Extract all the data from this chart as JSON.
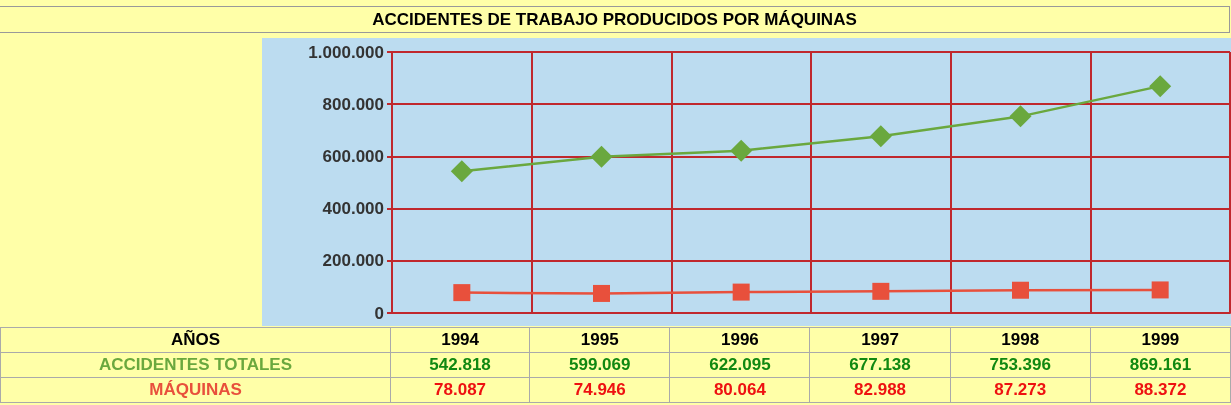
{
  "chart_data": {
    "type": "line",
    "title": "ACCIDENTES DE TRABAJO PRODUCIDOS POR MÁQUINAS",
    "annotations": [
      "AÑOS"
    ],
    "categories": [
      "1994",
      "1995",
      "1996",
      "1997",
      "1998",
      "1999"
    ],
    "series": [
      {
        "name": "ACCIDENTES TOTALES",
        "color": "#6aa83e",
        "marker": "diamond",
        "values": [
          542818,
          599069,
          622095,
          677138,
          753396,
          869161
        ],
        "value_labels": [
          "542.818",
          "599.069",
          "622.095",
          "677.138",
          "753.396",
          "869.161"
        ]
      },
      {
        "name": "MÁQUINAS",
        "color": "#e8503c",
        "marker": "square",
        "values": [
          78087,
          74946,
          80064,
          82988,
          87273,
          88372
        ],
        "value_labels": [
          "78.087",
          "74.946",
          "80.064",
          "82.988",
          "87.273",
          "88.372"
        ]
      }
    ],
    "ylim": [
      0,
      1000000
    ],
    "yticks": [
      {
        "value": 0,
        "label": "0"
      },
      {
        "value": 200000,
        "label": "200.000"
      },
      {
        "value": 400000,
        "label": "400.000"
      },
      {
        "value": 600000,
        "label": "600.000"
      },
      {
        "value": 800000,
        "label": "800.000"
      },
      {
        "value": 1000000,
        "label": "1.000.000"
      }
    ],
    "grid": true,
    "legend": false,
    "tick_labels": "y",
    "line_style": "solid"
  }
}
